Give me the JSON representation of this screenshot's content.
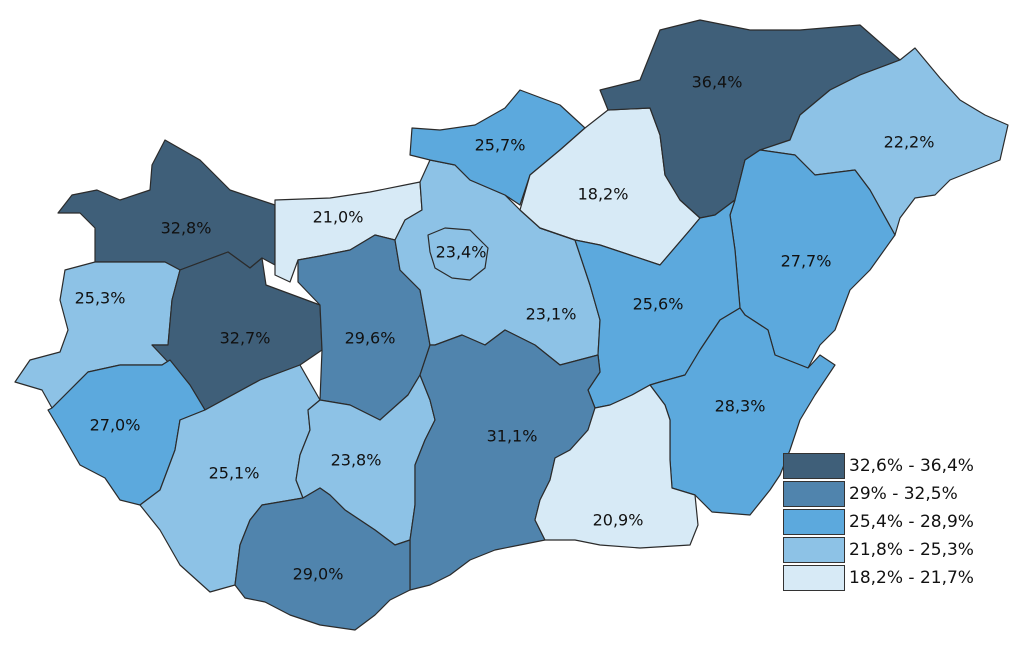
{
  "colors": {
    "class1": "#3f5f79",
    "class2": "#5084ad",
    "class3": "#5ca9dd",
    "class4": "#8dc2e6",
    "class5": "#d7eaf6"
  },
  "legend": [
    {
      "label": "32,6% - 36,4%",
      "color": "#3f5f79"
    },
    {
      "label": "29% - 32,5%",
      "color": "#5084ad"
    },
    {
      "label": "25,4% - 28,9%",
      "color": "#5ca9dd"
    },
    {
      "label": "21,8% - 25,3%",
      "color": "#8dc2e6"
    },
    {
      "label": "18,2% - 21,7%",
      "color": "#d7eaf6"
    }
  ],
  "regions": [
    {
      "id": "gyor-moson-sopron",
      "value": "32,8%",
      "class": 1
    },
    {
      "id": "komarom-esztergom",
      "value": "21,0%",
      "class": 5
    },
    {
      "id": "vas",
      "value": "25,3%",
      "class": 4
    },
    {
      "id": "veszprem",
      "value": "32,7%",
      "class": 1
    },
    {
      "id": "fejer",
      "value": "29,6%",
      "class": 2
    },
    {
      "id": "budapest",
      "value": "23,4%",
      "class": 4
    },
    {
      "id": "pest",
      "value": "23,1%",
      "class": 4
    },
    {
      "id": "nograd",
      "value": "25,7%",
      "class": 3
    },
    {
      "id": "heves",
      "value": "18,2%",
      "class": 5
    },
    {
      "id": "borsod-abauj-zemplen",
      "value": "36,4%",
      "class": 1
    },
    {
      "id": "szabolcs-szatmar-bereg",
      "value": "22,2%",
      "class": 4
    },
    {
      "id": "hajdu-bihar",
      "value": "27,7%",
      "class": 3
    },
    {
      "id": "jasz-nagykun-szolnok",
      "value": "25,6%",
      "class": 3
    },
    {
      "id": "bekes",
      "value": "28,3%",
      "class": 3
    },
    {
      "id": "zala",
      "value": "27,0%",
      "class": 3
    },
    {
      "id": "somogy",
      "value": "25,1%",
      "class": 4
    },
    {
      "id": "tolna",
      "value": "23,8%",
      "class": 4
    },
    {
      "id": "bacs-kiskun",
      "value": "31,1%",
      "class": 2
    },
    {
      "id": "csongrad",
      "value": "20,9%",
      "class": 5
    },
    {
      "id": "baranya",
      "value": "29,0%",
      "class": 2
    }
  ]
}
